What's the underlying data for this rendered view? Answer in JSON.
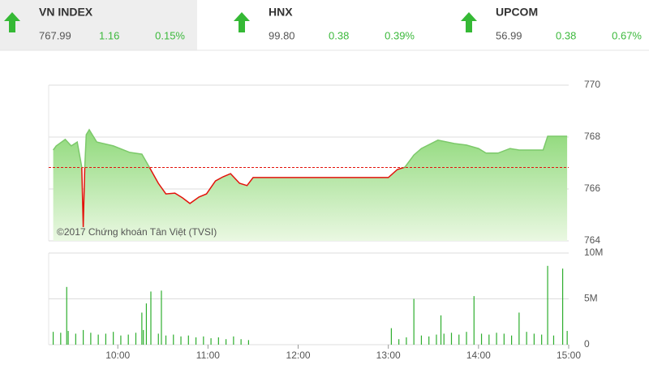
{
  "indices": [
    {
      "name": "VN INDEX",
      "price": "767.99",
      "change": "1.16",
      "percent": "0.15%"
    },
    {
      "name": "HNX",
      "price": "99.80",
      "change": "0.38",
      "percent": "0.39%"
    },
    {
      "name": "UPCOM",
      "price": "56.99",
      "change": "0.38",
      "percent": "0.67%"
    }
  ],
  "chart_data": [
    {
      "type": "area-line",
      "copyright": "©2017 Chứng khoán Tân Việt (TVSI)",
      "x": [
        557,
        559,
        565,
        569,
        573,
        576,
        577,
        578,
        579,
        581,
        586,
        597,
        608,
        616,
        621,
        627,
        632,
        638,
        643,
        648,
        654,
        659,
        665,
        670,
        675,
        681,
        686,
        690,
        780,
        786,
        791,
        797,
        802,
        813,
        824,
        832,
        840,
        845,
        853,
        861,
        867,
        877,
        883,
        886,
        899
      ],
      "values": [
        767.5,
        767.66,
        767.91,
        767.66,
        767.81,
        766.84,
        764.53,
        766.84,
        768.09,
        768.28,
        767.81,
        767.66,
        767.41,
        767.34,
        766.84,
        766.22,
        765.81,
        765.84,
        765.66,
        765.44,
        765.69,
        765.81,
        766.31,
        766.47,
        766.59,
        766.22,
        766.13,
        766.44,
        766.44,
        766.75,
        766.84,
        767.31,
        767.56,
        767.88,
        767.75,
        767.69,
        767.56,
        767.38,
        767.38,
        767.56,
        767.5,
        767.5,
        767.5,
        768.03,
        768.03
      ],
      "reference": 766.83,
      "up_color": "#7cc96a",
      "down_color": "#e3120b",
      "xlim": [
        554,
        900
      ],
      "ylim": [
        764,
        770
      ],
      "yticks": [
        764,
        766,
        768,
        770
      ],
      "grid": true
    },
    {
      "type": "bar",
      "x": [
        557,
        562,
        566,
        567,
        572,
        577,
        582,
        587,
        592,
        597,
        602,
        607,
        612,
        616,
        617,
        619,
        622,
        627,
        629,
        632,
        637,
        642,
        647,
        652,
        657,
        662,
        667,
        672,
        677,
        682,
        687,
        782,
        787,
        792,
        797,
        802,
        807,
        812,
        815,
        817,
        822,
        827,
        832,
        837,
        842,
        847,
        852,
        857,
        862,
        867,
        872,
        877,
        882,
        886,
        890,
        896,
        899
      ],
      "values": [
        1.4,
        1.3,
        6.3,
        1.5,
        1.2,
        1.6,
        1.3,
        1.1,
        1.2,
        1.4,
        1.0,
        1.1,
        1.3,
        3.5,
        1.6,
        4.5,
        5.8,
        1.2,
        5.9,
        1.0,
        1.1,
        0.9,
        1.0,
        0.8,
        0.9,
        0.7,
        0.8,
        0.6,
        0.9,
        0.6,
        0.5,
        1.8,
        0.6,
        0.8,
        5.0,
        1.0,
        0.9,
        1.1,
        3.2,
        1.2,
        1.3,
        1.1,
        1.4,
        5.3,
        1.2,
        1.1,
        1.3,
        1.2,
        1.0,
        3.5,
        1.4,
        1.2,
        1.1,
        8.6,
        1.0,
        8.3,
        1.5
      ],
      "color": "#2eae2e",
      "xlim": [
        554,
        900
      ],
      "ylim": [
        0,
        10
      ],
      "yticks": [
        0,
        {
          "value": 5,
          "label": "5M"
        },
        {
          "value": 10,
          "label": "10M"
        }
      ],
      "xticks": [
        {
          "value": 600,
          "label": "10:00"
        },
        {
          "value": 660,
          "label": "11:00"
        },
        {
          "value": 720,
          "label": "12:00"
        },
        {
          "value": 780,
          "label": "13:00"
        },
        {
          "value": 840,
          "label": "14:00"
        },
        {
          "value": 900,
          "label": "15:00"
        }
      ]
    }
  ]
}
